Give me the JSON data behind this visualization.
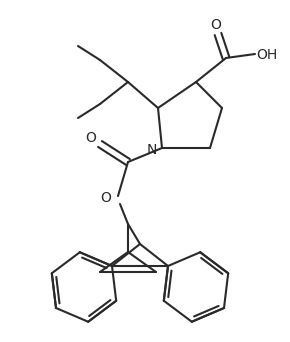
{
  "bg_color": "#ffffff",
  "line_color": "#2a2a2a",
  "lw": 1.5,
  "figsize": [
    2.9,
    3.42
  ],
  "dpi": 100,
  "xlim": [
    0,
    290
  ],
  "ylim": [
    342,
    0
  ]
}
